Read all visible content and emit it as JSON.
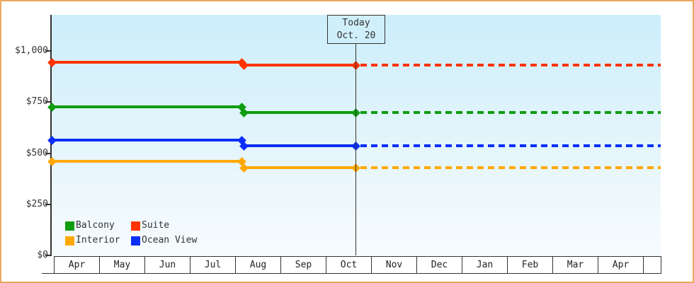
{
  "frame": {
    "border_color": "#eaa85e"
  },
  "chart_data": {
    "type": "line",
    "title": "",
    "description": "Cabin price history by month with price drop in early August and dashed projection after today",
    "today": {
      "line1": "Today",
      "line2": "Oct. 20",
      "month_index": 6,
      "day": 20,
      "days_in_month": 31
    },
    "price_change": {
      "month": "Aug",
      "month_index": 4,
      "fraction": 0.12
    },
    "x_axis": {
      "months": [
        "Apr",
        "May",
        "Jun",
        "Jul",
        "Aug",
        "Sep",
        "Oct",
        "Nov",
        "Dec",
        "Jan",
        "Feb",
        "Mar",
        "Apr"
      ]
    },
    "y_axis": {
      "ticks": [
        {
          "label": "$0",
          "value": 0
        },
        {
          "label": "$250",
          "value": 250
        },
        {
          "label": "$500",
          "value": 500
        },
        {
          "label": "$750",
          "value": 750
        },
        {
          "label": "$1,000",
          "value": 1000
        }
      ],
      "ylim": [
        0,
        1175
      ],
      "grid": false
    },
    "series": [
      {
        "name": "Suite",
        "color": "#ff3300",
        "price_initial": 945,
        "price_current": 930
      },
      {
        "name": "Balcony",
        "color": "#0f9d0f",
        "price_initial": 725,
        "price_current": 700
      },
      {
        "name": "Ocean View",
        "color": "#0b2ffa",
        "price_initial": 565,
        "price_current": 535
      },
      {
        "name": "Interior",
        "color": "#ffa800",
        "price_initial": 460,
        "price_current": 430
      }
    ],
    "legend_items": [
      {
        "label": "Balcony",
        "color": "#0f9d0f"
      },
      {
        "label": "Suite",
        "color": "#ff3300"
      },
      {
        "label": "Interior",
        "color": "#ffa800"
      },
      {
        "label": "Ocean View",
        "color": "#0b2ffa"
      }
    ],
    "legend_position": "bottom-left",
    "styles": {
      "plot_bg_top": "#cceefb",
      "plot_bg_bottom": "#f7fcfe",
      "axis_color": "#333333",
      "today_box_bg": "#cfeffb"
    }
  }
}
